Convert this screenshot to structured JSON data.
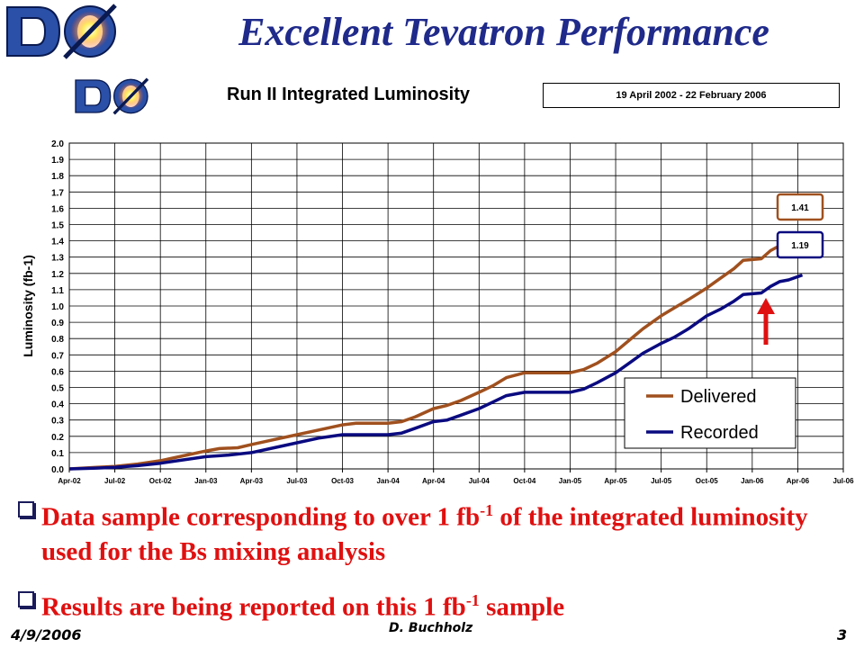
{
  "slide": {
    "title": "Excellent Tevatron Performance",
    "bullets": [
      {
        "pre": "Data sample corresponding to over 1 fb",
        "sup": "-1",
        "post": " of the integrated luminosity used for the Bs mixing analysis"
      },
      {
        "pre": "Results are being reported on this 1 fb",
        "sup": "-1",
        "post": " sample"
      }
    ],
    "footer": {
      "date": "4/9/2006",
      "author": "D. Buchholz",
      "page": "3"
    },
    "logo_text": "DØ"
  },
  "chart_data": {
    "type": "line",
    "title": "Run II Integrated Luminosity",
    "date_range": "19 April 2002 - 22 February 2006",
    "ylabel": "Luminosity (fb-1)",
    "xlabel": "",
    "x_ticks": [
      "Apr-02",
      "Jul-02",
      "Oct-02",
      "Jan-03",
      "Apr-03",
      "Jul-03",
      "Oct-03",
      "Jan-04",
      "Apr-04",
      "Jul-04",
      "Oct-04",
      "Jan-05",
      "Apr-05",
      "Jul-05",
      "Oct-05",
      "Jan-06",
      "Apr-06",
      "Jul-06"
    ],
    "ylim": [
      0,
      2.0
    ],
    "y_ticks": [
      "0.0",
      "0.1",
      "0.2",
      "0.3",
      "0.4",
      "0.5",
      "0.6",
      "0.7",
      "0.8",
      "0.9",
      "1.0",
      "1.1",
      "1.2",
      "1.3",
      "1.4",
      "1.5",
      "1.6",
      "1.7",
      "1.8",
      "1.9",
      "2.0"
    ],
    "grid": true,
    "legend": "bottom-right",
    "x_unit": "quarters since Apr-02",
    "series": [
      {
        "name": "Delivered",
        "color": "#a0501e",
        "end_label": "1.41",
        "points": [
          [
            0,
            0
          ],
          [
            0.6,
            0.01
          ],
          [
            1,
            0.015
          ],
          [
            1.5,
            0.03
          ],
          [
            2,
            0.05
          ],
          [
            2.5,
            0.08
          ],
          [
            3,
            0.11
          ],
          [
            3.3,
            0.125
          ],
          [
            3.7,
            0.13
          ],
          [
            4,
            0.15
          ],
          [
            4.5,
            0.18
          ],
          [
            5,
            0.21
          ],
          [
            5.5,
            0.24
          ],
          [
            6,
            0.27
          ],
          [
            6.3,
            0.28
          ],
          [
            7,
            0.28
          ],
          [
            7.3,
            0.29
          ],
          [
            7.6,
            0.32
          ],
          [
            8,
            0.37
          ],
          [
            8.3,
            0.39
          ],
          [
            8.6,
            0.42
          ],
          [
            9,
            0.47
          ],
          [
            9.3,
            0.51
          ],
          [
            9.6,
            0.56
          ],
          [
            10,
            0.59
          ],
          [
            10.5,
            0.59
          ],
          [
            11,
            0.59
          ],
          [
            11.3,
            0.61
          ],
          [
            11.6,
            0.65
          ],
          [
            12,
            0.72
          ],
          [
            12.3,
            0.79
          ],
          [
            12.6,
            0.86
          ],
          [
            13,
            0.94
          ],
          [
            13.3,
            0.99
          ],
          [
            13.6,
            1.04
          ],
          [
            14,
            1.11
          ],
          [
            14.3,
            1.17
          ],
          [
            14.6,
            1.23
          ],
          [
            14.8,
            1.28
          ],
          [
            15.2,
            1.29
          ],
          [
            15.4,
            1.34
          ],
          [
            15.6,
            1.37
          ],
          [
            15.8,
            1.38
          ],
          [
            16.05,
            1.41
          ]
        ]
      },
      {
        "name": "Recorded",
        "color": "#0a0a80",
        "end_label": "1.19",
        "points": [
          [
            0,
            0
          ],
          [
            0.6,
            0.005
          ],
          [
            1,
            0.01
          ],
          [
            1.5,
            0.02
          ],
          [
            2,
            0.035
          ],
          [
            2.5,
            0.055
          ],
          [
            3,
            0.075
          ],
          [
            3.5,
            0.085
          ],
          [
            4,
            0.1
          ],
          [
            4.5,
            0.13
          ],
          [
            5,
            0.16
          ],
          [
            5.5,
            0.19
          ],
          [
            6,
            0.21
          ],
          [
            6.5,
            0.21
          ],
          [
            7,
            0.21
          ],
          [
            7.3,
            0.22
          ],
          [
            7.6,
            0.25
          ],
          [
            8,
            0.29
          ],
          [
            8.3,
            0.3
          ],
          [
            8.6,
            0.33
          ],
          [
            9,
            0.37
          ],
          [
            9.3,
            0.41
          ],
          [
            9.6,
            0.45
          ],
          [
            10,
            0.47
          ],
          [
            10.5,
            0.47
          ],
          [
            11,
            0.47
          ],
          [
            11.3,
            0.49
          ],
          [
            11.6,
            0.53
          ],
          [
            12,
            0.59
          ],
          [
            12.3,
            0.65
          ],
          [
            12.6,
            0.71
          ],
          [
            13,
            0.77
          ],
          [
            13.3,
            0.81
          ],
          [
            13.6,
            0.86
          ],
          [
            14,
            0.94
          ],
          [
            14.3,
            0.98
          ],
          [
            14.6,
            1.03
          ],
          [
            14.8,
            1.07
          ],
          [
            15.2,
            1.08
          ],
          [
            15.4,
            1.12
          ],
          [
            15.6,
            1.15
          ],
          [
            15.8,
            1.16
          ],
          [
            16.1,
            1.19
          ]
        ]
      }
    ],
    "arrow_color": "#e01010",
    "arrow_at": [
      15.3,
      1.05
    ]
  }
}
